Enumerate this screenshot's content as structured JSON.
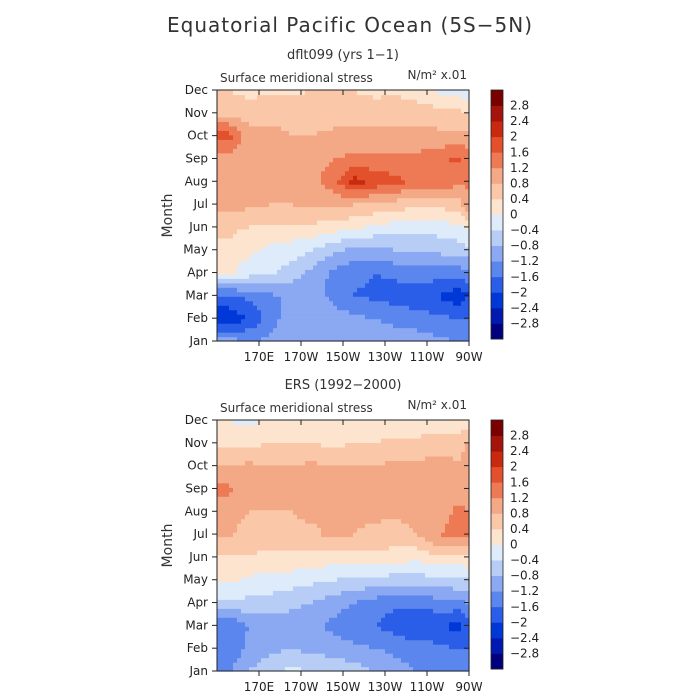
{
  "figure": {
    "title": "Equatorial Pacific Ocean (5S−5N)"
  },
  "colors": {
    "levels": [
      -2.8,
      -2.4,
      -2,
      -1.6,
      -1.2,
      -0.8,
      -0.4,
      0,
      0.4,
      0.8,
      1.2,
      1.6,
      2,
      2.4,
      2.8
    ],
    "palette": [
      "#00007f",
      "#0019b0",
      "#0038d8",
      "#2b5ee8",
      "#5b86ee",
      "#8aa9f2",
      "#b7cdf6",
      "#deebfb",
      "#fde4cf",
      "#fac8a8",
      "#f3a886",
      "#ed7a55",
      "#e3502c",
      "#c8290f",
      "#a4140a",
      "#7a0000"
    ]
  },
  "chart_data": [
    {
      "type": "heatmap",
      "title": "dflt099 (yrs 1−1)",
      "subtitle": "Surface meridional stress",
      "units": "N/m² x.01",
      "ylabel": "Month",
      "xlabel": "",
      "x": [
        "170E",
        "170W",
        "150W",
        "130W",
        "110W",
        "90W"
      ],
      "y": [
        "Jan",
        "Feb",
        "Mar",
        "Apr",
        "May",
        "Jun",
        "Jul",
        "Aug",
        "Sep",
        "Oct",
        "Nov",
        "Dec"
      ],
      "colorbar_labels": [
        "2.8",
        "2.4",
        "2",
        "1.6",
        "1.2",
        "0.8",
        "0.4",
        "0",
        "−0.4",
        "−0.8",
        "−1.2",
        "−1.6",
        "−2",
        "−2.4",
        "−2.8"
      ],
      "grid_lon": [
        155,
        165,
        175,
        185,
        195,
        205,
        215,
        225,
        235,
        245,
        255,
        265,
        270
      ],
      "values": [
        [
          -1.0,
          -1.2,
          -1.1,
          -0.9,
          -0.8,
          -0.8,
          -0.8,
          -0.9,
          -1.0,
          -1.0,
          -1.1,
          -1.2,
          -1.2
        ],
        [
          -2.3,
          -2.0,
          -1.4,
          -1.0,
          -0.9,
          -1.0,
          -1.1,
          -1.2,
          -1.3,
          -1.4,
          -1.5,
          -1.6,
          -1.6
        ],
        [
          -1.7,
          -1.5,
          -1.3,
          -1.1,
          -1.0,
          -1.3,
          -1.6,
          -1.7,
          -1.8,
          -1.9,
          -2.0,
          -2.3,
          -2.0
        ],
        [
          0.1,
          -0.2,
          -0.3,
          -0.6,
          -0.9,
          -1.3,
          -1.5,
          -1.6,
          -1.5,
          -1.4,
          -1.4,
          -1.4,
          -1.3
        ],
        [
          0.3,
          0.1,
          -0.1,
          -0.2,
          -0.4,
          -0.7,
          -0.9,
          -0.9,
          -0.8,
          -0.8,
          -0.7,
          -0.6,
          -0.5
        ],
        [
          0.5,
          0.4,
          0.3,
          0.3,
          0.3,
          0.2,
          0.1,
          -0.1,
          -0.2,
          -0.3,
          -0.2,
          -0.1,
          0.1
        ],
        [
          0.9,
          0.9,
          0.8,
          0.8,
          0.9,
          0.9,
          0.8,
          0.7,
          0.6,
          0.5,
          0.5,
          0.6,
          1.3
        ],
        [
          0.9,
          0.9,
          0.8,
          0.9,
          1.1,
          1.4,
          2.2,
          1.9,
          1.7,
          1.5,
          1.6,
          1.3,
          1.2
        ],
        [
          1.0,
          0.9,
          0.9,
          0.8,
          1.0,
          1.2,
          1.3,
          1.3,
          1.3,
          1.3,
          1.5,
          1.7,
          1.3
        ],
        [
          1.8,
          1.0,
          0.9,
          0.8,
          0.8,
          0.9,
          0.9,
          0.9,
          0.9,
          0.9,
          0.9,
          0.9,
          1.0
        ],
        [
          0.7,
          0.6,
          0.7,
          0.7,
          0.7,
          0.6,
          0.6,
          0.6,
          0.7,
          0.6,
          0.6,
          0.5,
          0.4
        ],
        [
          0.4,
          0.3,
          0.3,
          0.3,
          0.4,
          0.4,
          0.4,
          0.3,
          0.3,
          0.2,
          -0.1,
          -0.2,
          -0.3
        ]
      ]
    },
    {
      "type": "heatmap",
      "title": "ERS (1992−2000)",
      "subtitle": "Surface meridional stress",
      "units": "N/m² x.01",
      "ylabel": "Month",
      "xlabel": "",
      "x": [
        "170E",
        "170W",
        "150W",
        "130W",
        "110W",
        "90W"
      ],
      "y": [
        "Jan",
        "Feb",
        "Mar",
        "Apr",
        "May",
        "Jun",
        "Jul",
        "Aug",
        "Sep",
        "Oct",
        "Nov",
        "Dec"
      ],
      "colorbar_labels": [
        "2.8",
        "2.4",
        "2",
        "1.6",
        "1.2",
        "0.8",
        "0.4",
        "0",
        "−0.4",
        "−0.8",
        "−1.2",
        "−1.6",
        "−2",
        "−2.4",
        "−2.8"
      ],
      "grid_lon": [
        155,
        165,
        175,
        185,
        195,
        205,
        215,
        225,
        235,
        245,
        255,
        265,
        270
      ],
      "values": [
        [
          -1.3,
          -0.8,
          -0.5,
          -0.3,
          -0.4,
          -0.5,
          -0.6,
          -0.8,
          -1.0,
          -1.2,
          -1.3,
          -1.4,
          -1.4
        ],
        [
          -1.5,
          -1.1,
          -0.9,
          -0.8,
          -0.9,
          -1.0,
          -1.1,
          -1.2,
          -1.3,
          -1.4,
          -1.5,
          -1.6,
          -1.6
        ],
        [
          -1.6,
          -1.2,
          -1.0,
          -1.0,
          -1.1,
          -1.3,
          -1.5,
          -1.6,
          -1.8,
          -2.0,
          -1.9,
          -2.2,
          -1.8
        ],
        [
          -0.5,
          -0.5,
          -0.6,
          -0.7,
          -0.8,
          -1.0,
          -1.2,
          -1.4,
          -1.5,
          -1.5,
          -1.4,
          -1.3,
          -1.2
        ],
        [
          0.1,
          -0.1,
          -0.1,
          -0.2,
          -0.3,
          -0.4,
          -0.5,
          -0.5,
          -0.6,
          -0.6,
          -0.5,
          -0.5,
          -0.4
        ],
        [
          0.3,
          0.4,
          0.2,
          0.3,
          0.3,
          0.2,
          0.2,
          0.3,
          0.2,
          0.1,
          0.3,
          0.2,
          0.3
        ],
        [
          0.9,
          0.6,
          0.8,
          0.7,
          0.7,
          0.9,
          0.8,
          0.7,
          0.6,
          0.8,
          1.2,
          1.3,
          1.2
        ],
        [
          1.0,
          0.8,
          0.8,
          0.8,
          0.9,
          0.9,
          0.9,
          0.9,
          0.9,
          0.9,
          1.0,
          1.3,
          1.2
        ],
        [
          1.3,
          0.9,
          0.8,
          0.8,
          0.9,
          0.8,
          0.8,
          0.8,
          0.8,
          0.8,
          0.9,
          1.0,
          1.1
        ],
        [
          0.8,
          0.9,
          0.8,
          0.8,
          0.9,
          0.8,
          0.8,
          0.8,
          0.9,
          0.9,
          1.0,
          0.9,
          1.2
        ],
        [
          0.3,
          0.3,
          0.4,
          0.4,
          0.4,
          0.3,
          0.4,
          0.4,
          0.5,
          0.5,
          0.6,
          0.5,
          0.9
        ],
        [
          0.0,
          -0.1,
          0.1,
          0.1,
          0.1,
          0.1,
          0.1,
          0.1,
          0.1,
          0.1,
          0.2,
          0.2,
          0.1
        ]
      ]
    }
  ]
}
